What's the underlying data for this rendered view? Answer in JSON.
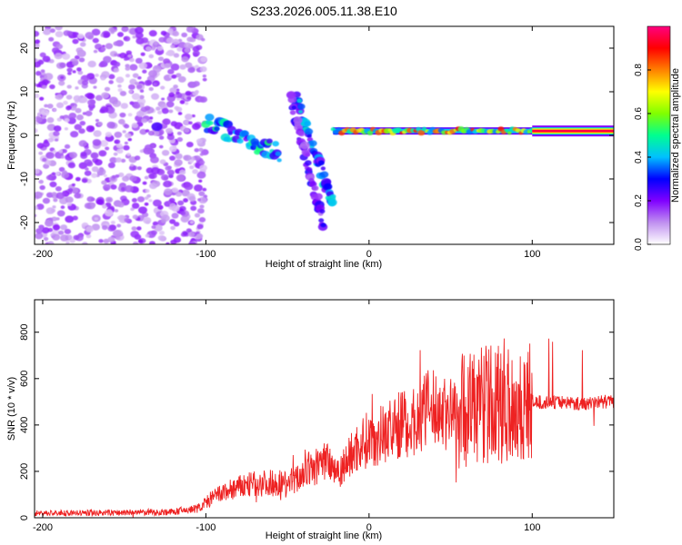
{
  "title": "S233.2026.005.11.38.E10",
  "colors": {
    "snr_line": "#ee2222",
    "axis": "#000000",
    "background": "#ffffff"
  },
  "chart_data": [
    {
      "type": "heatmap",
      "name": "spectrogram",
      "xlabel": "Height of straight line (km)",
      "ylabel": "Frequency (Hz)",
      "xlim": [
        -205,
        150
      ],
      "ylim": [
        -25,
        25
      ],
      "xticks": [
        -200,
        -100,
        0,
        100
      ],
      "xtick_labels": [
        "-200",
        "-100",
        "0",
        "100"
      ],
      "yticks": [
        -20,
        -10,
        0,
        10,
        20
      ],
      "ytick_labels": [
        "-20",
        "-10",
        "0",
        "10",
        "20"
      ],
      "colorbar": {
        "label": "Normalized spectral amplitude",
        "range": [
          0,
          1
        ],
        "ticks": [
          0.0,
          0.2,
          0.4,
          0.6,
          0.8
        ],
        "tick_labels": [
          "0.0",
          "0.2",
          "0.4",
          "0.6",
          "0.8"
        ],
        "colormap": [
          "#ffffff",
          "#c090f0",
          "#8000ff",
          "#0000ff",
          "#00c0ff",
          "#00ff90",
          "#80ff00",
          "#ffff00",
          "#ff8000",
          "#ff0000",
          "#ff0080"
        ]
      },
      "features": [
        {
          "label": "noise",
          "x_range": [
            -205,
            -100
          ],
          "f_range": [
            -25,
            25
          ],
          "amplitude": 0.1
        },
        {
          "label": "tone",
          "x": -130,
          "f": 2,
          "amplitude": 0.25
        },
        {
          "label": "chirp",
          "x_range": [
            -100,
            -55
          ],
          "f_start": 3,
          "f_end": -4,
          "amplitude": 0.35
        },
        {
          "label": "chirp",
          "x_range": [
            -45,
            -22
          ],
          "f_start": 9,
          "f_end": -16,
          "amplitude": 0.3
        },
        {
          "label": "streak",
          "x_range": [
            -48,
            -28
          ],
          "f_start": 8,
          "f_end": -20,
          "amplitude": 0.2
        },
        {
          "label": "carrier",
          "x_range": [
            -22,
            100
          ],
          "f": 1,
          "amplitude": 0.5
        },
        {
          "label": "carrier",
          "x_range": [
            100,
            150
          ],
          "f": 1,
          "amplitude": 0.95
        }
      ]
    },
    {
      "type": "line",
      "name": "snr",
      "xlabel": "Height of straight line (km)",
      "ylabel": "SNR (10 * v/v)",
      "xlim": [
        -205,
        150
      ],
      "ylim": [
        0,
        940
      ],
      "xticks": [
        -200,
        -100,
        0,
        100
      ],
      "xtick_labels": [
        "-200",
        "-100",
        "0",
        "100"
      ],
      "yticks": [
        0,
        200,
        400,
        600,
        800
      ],
      "ytick_labels": [
        "0",
        "200",
        "400",
        "600",
        "800"
      ],
      "series": [
        {
          "name": "SNR",
          "x": [
            -205,
            -180,
            -150,
            -120,
            -105,
            -95,
            -85,
            -75,
            -65,
            -55,
            -45,
            -40,
            -35,
            -30,
            -25,
            -20,
            -15,
            -10,
            -5,
            0,
            5,
            10,
            15,
            20,
            25,
            30,
            35,
            40,
            45,
            50,
            55,
            60,
            65,
            70,
            75,
            80,
            85,
            90,
            95,
            100,
            110,
            120,
            130,
            140,
            150
          ],
          "values": [
            20,
            20,
            22,
            25,
            40,
            90,
            120,
            140,
            150,
            150,
            160,
            200,
            210,
            230,
            260,
            200,
            230,
            280,
            320,
            340,
            350,
            370,
            380,
            410,
            400,
            430,
            470,
            470,
            460,
            450,
            460,
            480,
            470,
            500,
            480,
            490,
            510,
            480,
            480,
            500,
            495,
            500,
            490,
            500,
            500
          ]
        }
      ]
    }
  ]
}
